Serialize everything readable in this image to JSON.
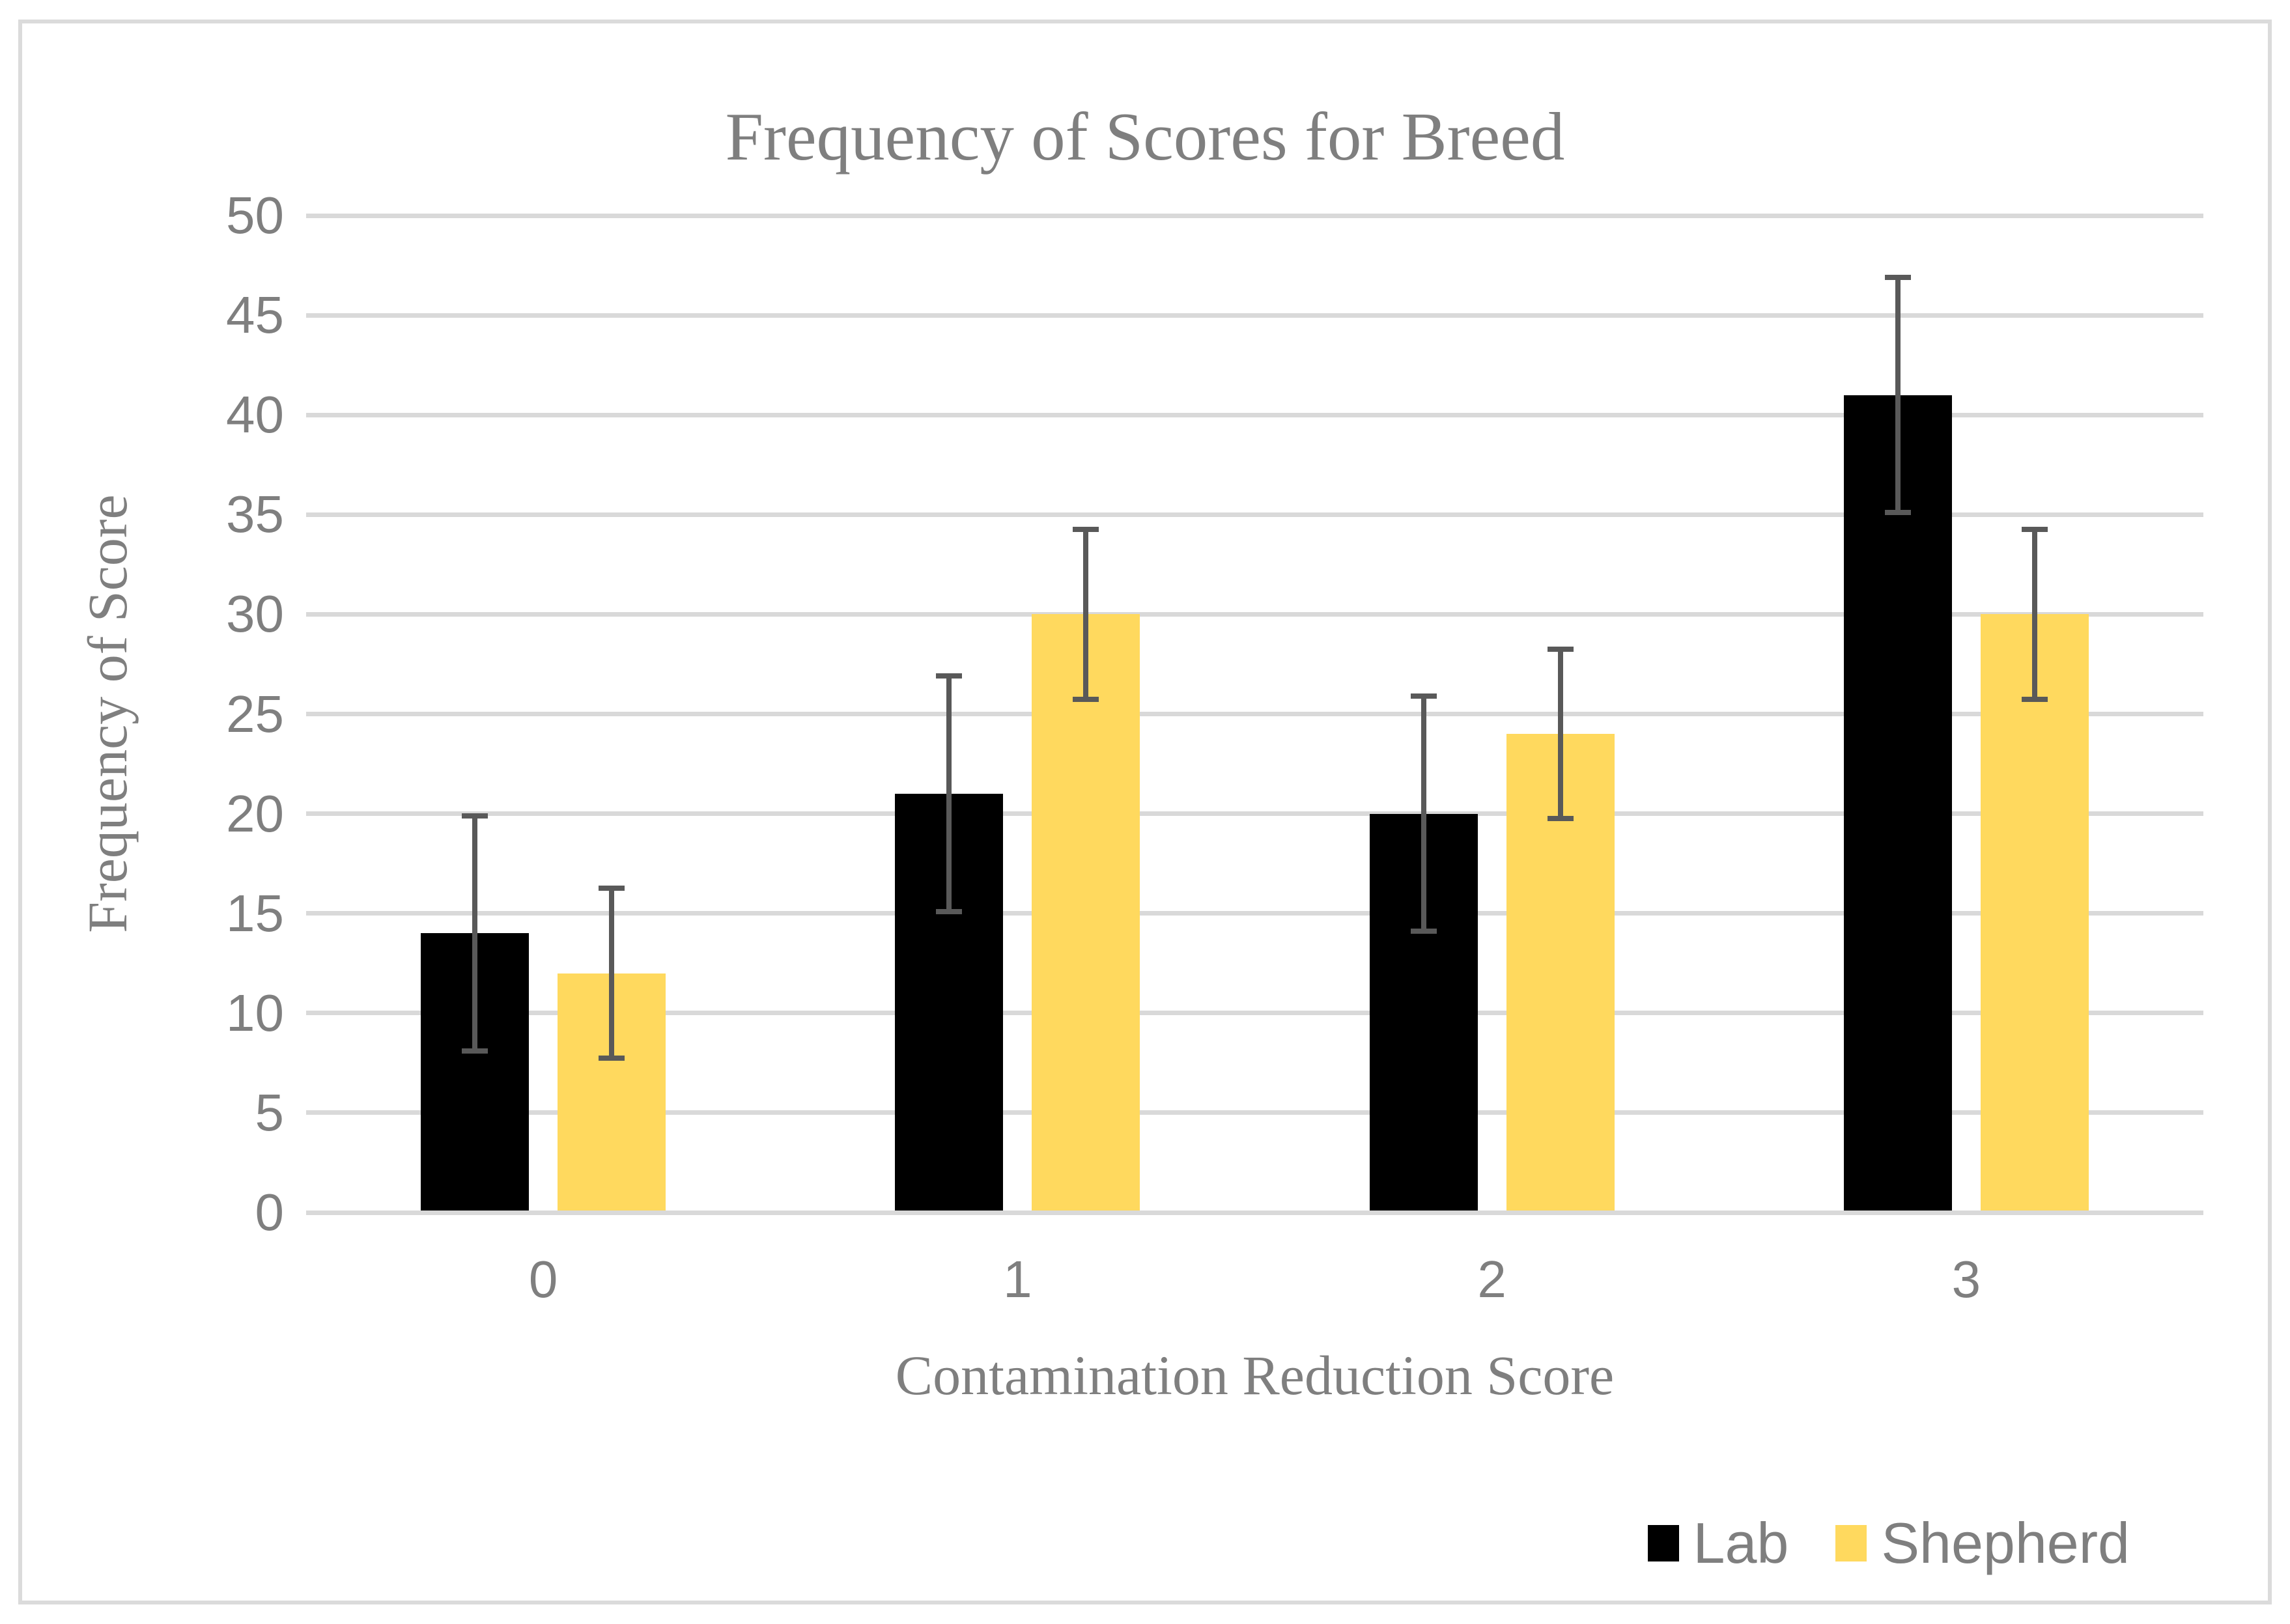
{
  "chart_data": {
    "type": "bar",
    "title": "Frequency of Scores for Breed",
    "xlabel": "Contamination Reduction Score",
    "ylabel": "Frequency of Score",
    "categories": [
      "0",
      "1",
      "2",
      "3"
    ],
    "series": [
      {
        "name": "Lab",
        "color": "#000000",
        "values": [
          14,
          21,
          20,
          41
        ],
        "error": 5.9
      },
      {
        "name": "Shepherd",
        "color": "#FFD95E",
        "values": [
          12,
          30,
          24,
          30
        ],
        "error": 4.25
      }
    ],
    "ylim": [
      0,
      50
    ],
    "ytick_step": 5,
    "grid": true,
    "legend_position": "bottom-right"
  },
  "colors": {
    "gridline": "#D9D9D9",
    "frame": "#DBDBDB",
    "error_bar": "#595959",
    "text": "#7F7F7F",
    "background": "#FFFFFF"
  }
}
